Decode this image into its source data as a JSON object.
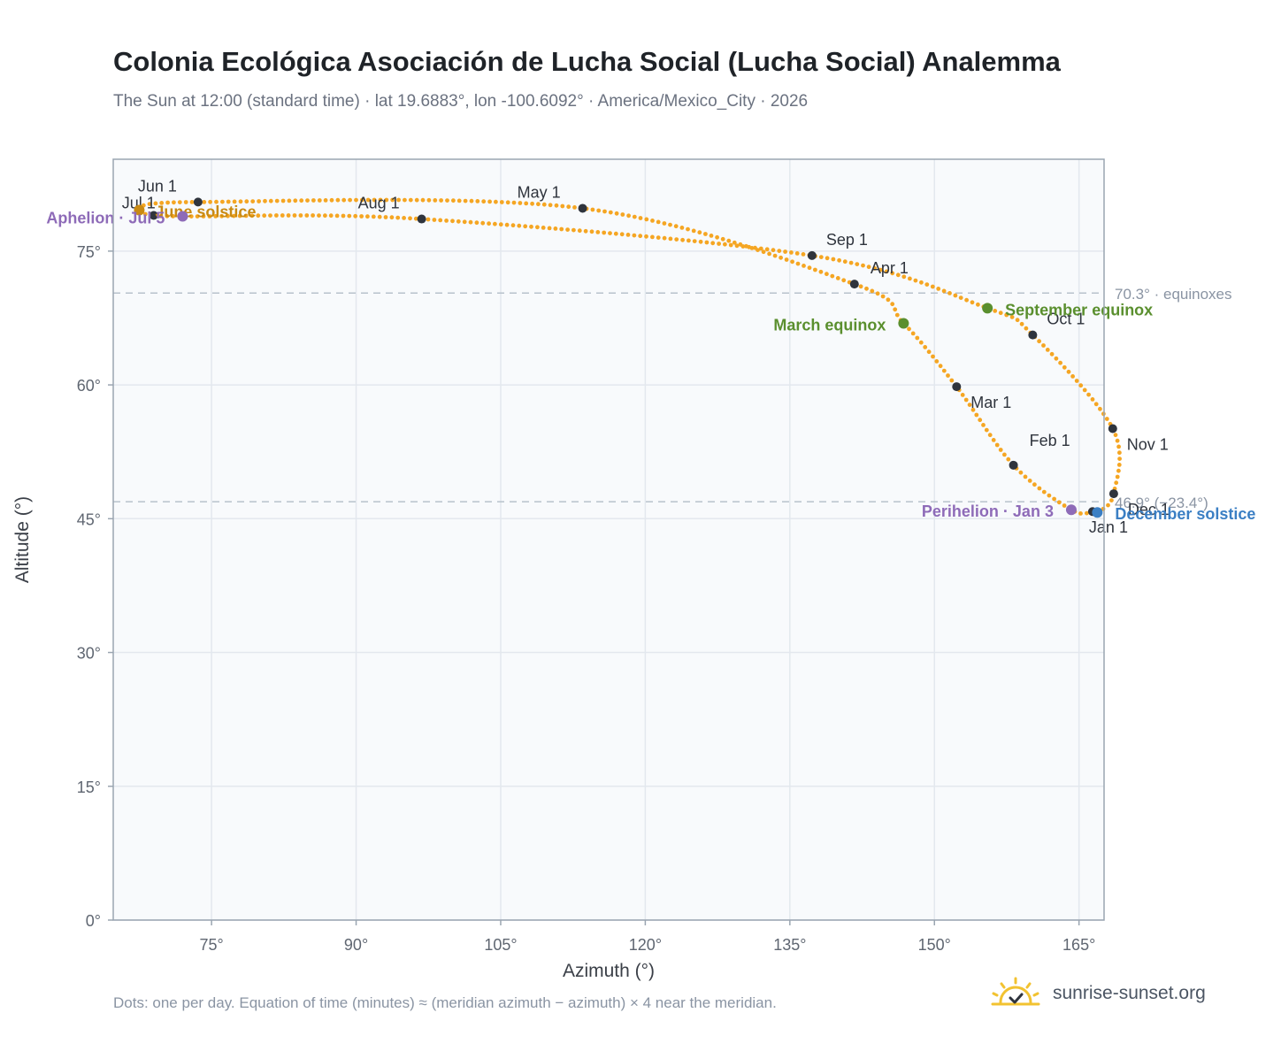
{
  "title": "Colonia Ecológica Asociación de Lucha Social (Lucha Social) Analemma",
  "subtitle": "The Sun at 12:00 (standard time) · lat 19.6883°, lon -100.6092° · America/Mexico_City · 2026",
  "footnote": "Dots: one per day. Equation of time (minutes) ≈ (meridian azimuth − azimuth) × 4 near the meridian.",
  "brand": {
    "text": "sunrise-sunset.org",
    "icon": "sun-logo-icon"
  },
  "colors": {
    "curve": "#f5a623",
    "month_marker": "#2f343d",
    "equinox": "#5a8f2e",
    "solstice_june": "#c98a12",
    "solstice_december": "#3b7fc4",
    "apsis": "#8e6bb8",
    "reference_line": "#b8c2cc",
    "grid": "#e3e8ee",
    "plot_bg": "#f8fafc",
    "frame": "#9aa5b1"
  },
  "chart_data": {
    "type": "scatter",
    "xlabel": "Azimuth (°)",
    "ylabel": "Altitude (°)",
    "xlim": [
      64.8,
      167.6
    ],
    "ylim": [
      0,
      85.3
    ],
    "x_ticks": [
      {
        "value": 75,
        "label": "75°"
      },
      {
        "value": 90,
        "label": "90°"
      },
      {
        "value": 105,
        "label": "105°"
      },
      {
        "value": 120,
        "label": "120°"
      },
      {
        "value": 135,
        "label": "135°"
      },
      {
        "value": 150,
        "label": "150°"
      },
      {
        "value": 165,
        "label": "165°"
      }
    ],
    "y_ticks": [
      {
        "value": 0,
        "label": "0°"
      },
      {
        "value": 15,
        "label": "15°"
      },
      {
        "value": 30,
        "label": "30°"
      },
      {
        "value": 45,
        "label": "45°"
      },
      {
        "value": 60,
        "label": "60°"
      },
      {
        "value": 75,
        "label": "75°"
      }
    ],
    "grid": true,
    "reference_lines": [
      {
        "altitude": 70.3,
        "label": "70.3° · equinoxes"
      },
      {
        "altitude": 46.9,
        "label": "46.9° (−23.4°)"
      }
    ],
    "path_points": [
      {
        "date": "Jan 1",
        "az": 166.4,
        "alt": 45.8
      },
      {
        "date": "Jan 3",
        "az": 164.2,
        "alt": 46.0
      },
      {
        "date": "Feb 1",
        "az": 158.2,
        "alt": 51.0
      },
      {
        "date": "Mar 1",
        "az": 152.3,
        "alt": 59.8
      },
      {
        "date": "Mar 20",
        "az": 146.8,
        "alt": 66.9
      },
      {
        "date": "Apr 1",
        "az": 141.7,
        "alt": 71.3
      },
      {
        "date": "May 1",
        "az": 113.5,
        "alt": 79.8
      },
      {
        "date": "Jun 1",
        "az": 73.6,
        "alt": 80.5
      },
      {
        "date": "Jun 21",
        "az": 67.5,
        "alt": 79.6
      },
      {
        "date": "Jul 1",
        "az": 69.0,
        "alt": 79.0
      },
      {
        "date": "Jul 5",
        "az": 72.0,
        "alt": 78.9
      },
      {
        "date": "Aug 1",
        "az": 96.8,
        "alt": 78.6
      },
      {
        "date": "Sep 1",
        "az": 137.3,
        "alt": 74.5
      },
      {
        "date": "Sep 22",
        "az": 155.5,
        "alt": 68.6
      },
      {
        "date": "Oct 1",
        "az": 160.2,
        "alt": 65.6
      },
      {
        "date": "Nov 1",
        "az": 168.5,
        "alt": 55.1
      },
      {
        "date": "Dec 1",
        "az": 168.6,
        "alt": 47.8
      },
      {
        "date": "Dec 21",
        "az": 166.9,
        "alt": 45.7
      },
      {
        "date": "Dec 31",
        "az": 166.5,
        "alt": 45.8
      }
    ],
    "month_markers": [
      {
        "label": "Jan 1",
        "az": 166.4,
        "alt": 45.8
      },
      {
        "label": "Feb 1",
        "az": 158.2,
        "alt": 51.0
      },
      {
        "label": "Mar 1",
        "az": 152.3,
        "alt": 59.8
      },
      {
        "label": "Apr 1",
        "az": 141.7,
        "alt": 71.3
      },
      {
        "label": "May 1",
        "az": 113.5,
        "alt": 79.8
      },
      {
        "label": "Jun 1",
        "az": 73.6,
        "alt": 80.5
      },
      {
        "label": "Jul 1",
        "az": 69.0,
        "alt": 79.0
      },
      {
        "label": "Aug 1",
        "az": 96.8,
        "alt": 78.6
      },
      {
        "label": "Sep 1",
        "az": 137.3,
        "alt": 74.5
      },
      {
        "label": "Oct 1",
        "az": 160.2,
        "alt": 65.6
      },
      {
        "label": "Nov 1",
        "az": 168.5,
        "alt": 55.1
      },
      {
        "label": "Dec 1",
        "az": 168.6,
        "alt": 47.8
      }
    ],
    "events": [
      {
        "label": "March equinox",
        "az": 146.8,
        "alt": 66.9,
        "kind": "equinox"
      },
      {
        "label": "September equinox",
        "az": 155.5,
        "alt": 68.6,
        "kind": "equinox"
      },
      {
        "label": "June solstice",
        "az": 67.5,
        "alt": 79.6,
        "kind": "solstice_june"
      },
      {
        "label": "December solstice",
        "az": 166.9,
        "alt": 45.7,
        "kind": "solstice_december"
      },
      {
        "label": "Perihelion · Jan 3",
        "az": 164.2,
        "alt": 46.0,
        "kind": "apsis"
      },
      {
        "label": "Aphelion · Jul 5",
        "az": 72.0,
        "alt": 78.9,
        "kind": "apsis"
      }
    ]
  }
}
